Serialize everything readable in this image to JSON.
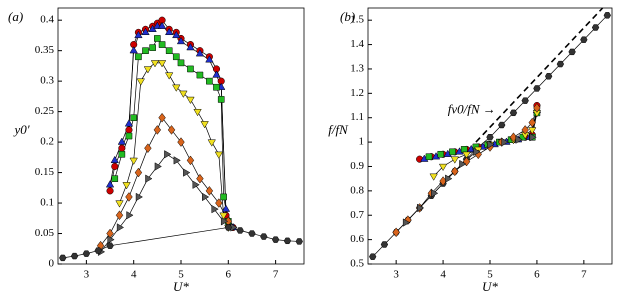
{
  "chart_data": [
    {
      "type": "scatter",
      "panel_label": "(a)",
      "x_label": "U*",
      "y_label": "y0′",
      "xlim": [
        2.4,
        7.6
      ],
      "ylim": [
        0,
        0.42
      ],
      "xticks": [
        3,
        4,
        5,
        6,
        7
      ],
      "yticks": [
        0,
        0.05,
        0.1,
        0.15,
        0.2,
        0.25,
        0.3,
        0.35,
        0.4
      ],
      "series": [
        {
          "color": "#cc0000",
          "marker": "circle",
          "x": [
            3.5,
            3.6,
            3.75,
            3.9,
            4.0,
            4.1,
            4.25,
            4.4,
            4.5,
            4.6,
            4.75,
            4.9,
            5.0,
            5.2,
            5.4,
            5.6,
            5.75,
            5.85,
            5.95,
            6.1
          ],
          "values": [
            0.12,
            0.16,
            0.19,
            0.22,
            0.36,
            0.38,
            0.385,
            0.39,
            0.395,
            0.4,
            0.385,
            0.38,
            0.37,
            0.36,
            0.35,
            0.34,
            0.32,
            0.3,
            0.08,
            0.06
          ]
        },
        {
          "color": "#1f2fcc",
          "marker": "triangle-up",
          "x": [
            3.5,
            3.6,
            3.75,
            3.9,
            4.0,
            4.1,
            4.25,
            4.4,
            4.5,
            4.6,
            4.75,
            4.9,
            5.0,
            5.2,
            5.4,
            5.6,
            5.75,
            5.85,
            5.95,
            6.1
          ],
          "values": [
            0.13,
            0.17,
            0.2,
            0.23,
            0.35,
            0.375,
            0.38,
            0.385,
            0.39,
            0.39,
            0.38,
            0.375,
            0.365,
            0.355,
            0.345,
            0.335,
            0.31,
            0.29,
            0.09,
            0.06
          ]
        },
        {
          "color": "#22bb22",
          "marker": "square",
          "x": [
            3.6,
            3.75,
            3.9,
            4.0,
            4.1,
            4.25,
            4.4,
            4.5,
            4.6,
            4.75,
            4.9,
            5.0,
            5.2,
            5.4,
            5.6,
            5.75,
            5.85,
            5.9,
            6.0
          ],
          "values": [
            0.14,
            0.18,
            0.21,
            0.24,
            0.34,
            0.35,
            0.355,
            0.37,
            0.36,
            0.35,
            0.34,
            0.33,
            0.32,
            0.31,
            0.3,
            0.29,
            0.27,
            0.11,
            0.07
          ]
        },
        {
          "color": "#f0e020",
          "marker": "triangle-down",
          "x": [
            3.7,
            3.85,
            4.0,
            4.15,
            4.3,
            4.45,
            4.6,
            4.75,
            4.9,
            5.05,
            5.2,
            5.35,
            5.5,
            5.65,
            5.8,
            5.9,
            6.0
          ],
          "values": [
            0.1,
            0.13,
            0.17,
            0.3,
            0.32,
            0.33,
            0.33,
            0.31,
            0.29,
            0.28,
            0.27,
            0.25,
            0.23,
            0.2,
            0.18,
            0.08,
            0.06
          ]
        },
        {
          "color": "#d8641c",
          "marker": "diamond",
          "x": [
            3.3,
            3.5,
            3.7,
            3.9,
            4.1,
            4.3,
            4.5,
            4.6,
            4.8,
            5.0,
            5.2,
            5.4,
            5.6,
            5.8,
            6.0
          ],
          "values": [
            0.03,
            0.05,
            0.08,
            0.11,
            0.15,
            0.19,
            0.22,
            0.24,
            0.22,
            0.2,
            0.17,
            0.14,
            0.12,
            0.1,
            0.07
          ]
        },
        {
          "color": "#555555",
          "marker": "triangle-right",
          "x": [
            3.3,
            3.5,
            3.7,
            3.9,
            4.1,
            4.3,
            4.5,
            4.7,
            4.9,
            5.1,
            5.3,
            5.5,
            5.7,
            5.9,
            6.1
          ],
          "values": [
            0.02,
            0.04,
            0.06,
            0.08,
            0.11,
            0.14,
            0.16,
            0.18,
            0.17,
            0.15,
            0.13,
            0.11,
            0.09,
            0.07,
            0.06
          ]
        },
        {
          "color": "#333333",
          "marker": "hexagon",
          "x": [
            2.5,
            2.75,
            3.0,
            3.25,
            3.5,
            6.0,
            6.25,
            6.5,
            6.75,
            7.0,
            7.25,
            7.5
          ],
          "values": [
            0.01,
            0.013,
            0.017,
            0.022,
            0.03,
            0.06,
            0.055,
            0.05,
            0.045,
            0.04,
            0.038,
            0.037
          ]
        }
      ]
    },
    {
      "type": "scatter",
      "panel_label": "(b)",
      "x_label": "U*",
      "y_label": "f/fN",
      "annotation": "fv0/fN →",
      "xlim": [
        2.4,
        7.6
      ],
      "ylim": [
        0.5,
        1.55
      ],
      "xticks": [
        3,
        4,
        5,
        6,
        7
      ],
      "yticks": [
        0.5,
        0.6,
        0.7,
        0.8,
        0.9,
        1,
        1.1,
        1.2,
        1.3,
        1.4,
        1.5
      ],
      "reference_line": {
        "x": [
          4.7,
          7.4
        ],
        "values": [
          1.0,
          1.55
        ]
      },
      "series": [
        {
          "color": "#333333",
          "marker": "hexagon",
          "x": [
            2.5,
            2.75,
            3.0,
            3.25,
            3.5,
            3.75,
            4.0,
            4.25,
            4.5,
            4.75,
            5.0,
            5.25,
            5.5,
            5.75,
            6.0,
            6.25,
            6.5,
            6.75,
            7.0,
            7.25,
            7.5
          ],
          "values": [
            0.53,
            0.58,
            0.63,
            0.68,
            0.73,
            0.78,
            0.83,
            0.88,
            0.93,
            0.98,
            1.02,
            1.07,
            1.12,
            1.17,
            1.22,
            1.27,
            1.32,
            1.37,
            1.42,
            1.47,
            1.52
          ]
        },
        {
          "color": "#cc0000",
          "marker": "circle",
          "x": [
            3.5,
            3.75,
            4.0,
            4.25,
            4.5,
            4.75,
            5.0,
            5.25,
            5.5,
            5.75,
            5.9,
            6.0
          ],
          "values": [
            0.93,
            0.94,
            0.95,
            0.96,
            0.97,
            0.98,
            0.99,
            1.0,
            1.01,
            1.02,
            1.03,
            1.15
          ]
        },
        {
          "color": "#1f2fcc",
          "marker": "triangle-up",
          "x": [
            3.6,
            3.85,
            4.1,
            4.35,
            4.6,
            4.85,
            5.1,
            5.35,
            5.6,
            5.85,
            6.0
          ],
          "values": [
            0.93,
            0.94,
            0.95,
            0.96,
            0.97,
            0.98,
            0.99,
            1.0,
            1.01,
            1.02,
            1.13
          ]
        },
        {
          "color": "#22bb22",
          "marker": "square",
          "x": [
            3.7,
            3.95,
            4.2,
            4.45,
            4.7,
            4.95,
            5.2,
            5.45,
            5.7,
            5.9,
            6.0
          ],
          "values": [
            0.94,
            0.95,
            0.96,
            0.97,
            0.98,
            0.99,
            1.0,
            1.01,
            1.02,
            1.02,
            1.12
          ]
        },
        {
          "color": "#f0e020",
          "marker": "triangle-down",
          "x": [
            3.8,
            4.0,
            4.25,
            4.5,
            4.75,
            5.0,
            5.25,
            5.5,
            5.75,
            5.9,
            6.0
          ],
          "values": [
            0.86,
            0.9,
            0.93,
            0.95,
            0.97,
            0.99,
            1.0,
            1.01,
            1.03,
            1.05,
            1.12
          ]
        },
        {
          "color": "#d8641c",
          "marker": "diamond",
          "x": [
            3.0,
            3.25,
            3.5,
            3.75,
            4.0,
            4.25,
            4.5,
            4.75,
            5.0,
            5.25,
            5.5,
            5.75,
            5.9,
            6.0
          ],
          "values": [
            0.63,
            0.68,
            0.73,
            0.79,
            0.84,
            0.88,
            0.92,
            0.95,
            0.98,
            1.0,
            1.02,
            1.05,
            1.08,
            1.14
          ]
        },
        {
          "color": "#555555",
          "marker": "triangle-right",
          "x": [
            3.2,
            3.5,
            3.8,
            4.1,
            4.4,
            4.7,
            5.0,
            5.3,
            5.6,
            5.9
          ],
          "values": [
            0.67,
            0.73,
            0.79,
            0.85,
            0.91,
            0.96,
            0.99,
            1.0,
            1.01,
            1.02
          ]
        }
      ]
    }
  ]
}
